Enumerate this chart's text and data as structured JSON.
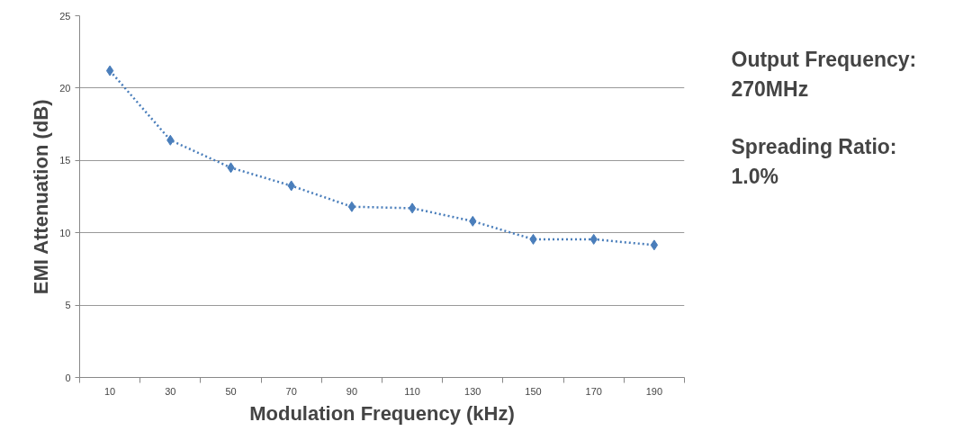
{
  "chart_data": {
    "type": "line",
    "xlabel": "Modulation Frequency (kHz)",
    "ylabel": "EMI Attenuation (dB)",
    "categories": [
      "10",
      "30",
      "50",
      "70",
      "90",
      "110",
      "130",
      "150",
      "170",
      "190"
    ],
    "series": [
      {
        "color": "#4a7ebb",
        "values": [
          21.2,
          16.4,
          14.5,
          13.25,
          11.8,
          11.7,
          10.8,
          9.55,
          9.55,
          9.15
        ]
      }
    ],
    "ylim": [
      0,
      25
    ],
    "yticks": [
      0,
      5,
      10,
      15,
      20,
      25
    ],
    "grid": "y",
    "marker": "diamond",
    "line_style": "dotted",
    "annotations": [
      "Output Frequency:",
      "270MHz",
      "Spreading Ratio:",
      "1.0%"
    ]
  }
}
